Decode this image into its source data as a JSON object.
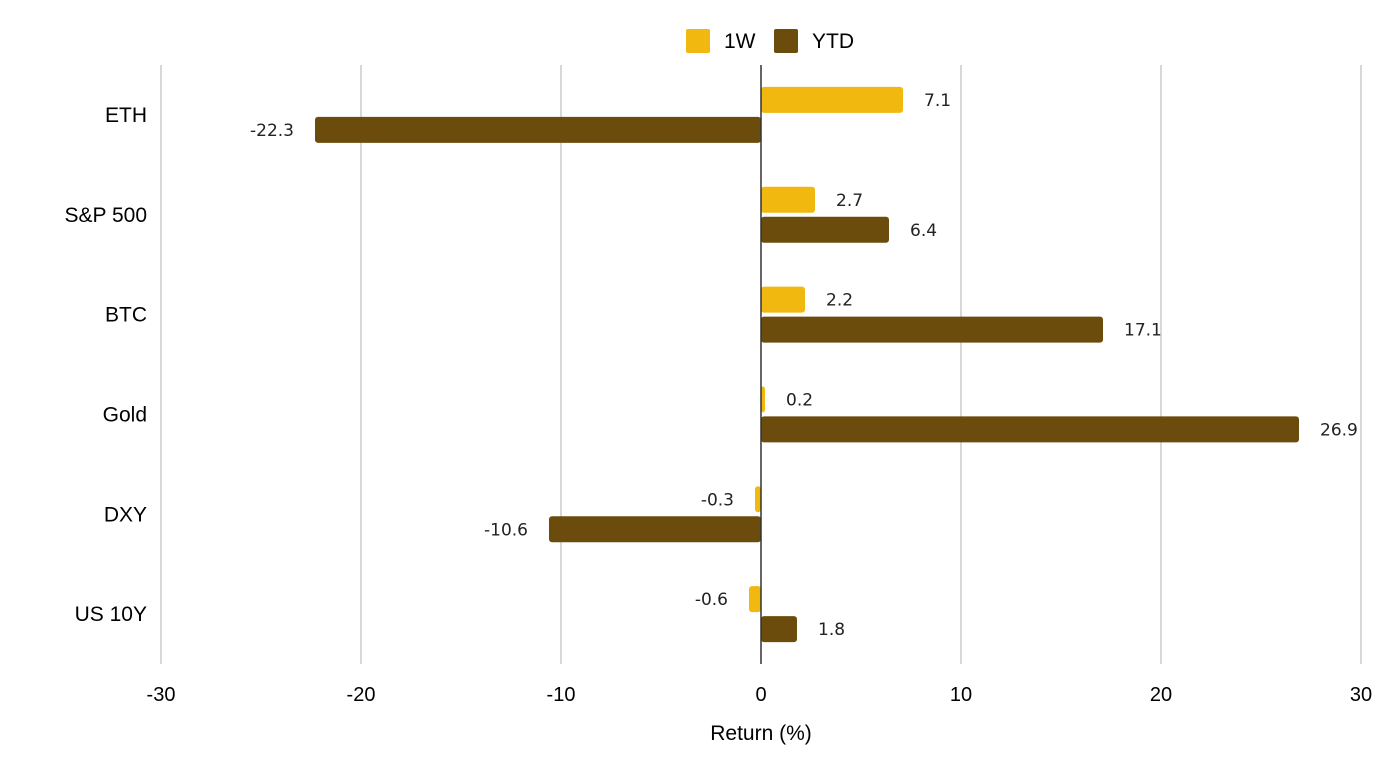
{
  "chart_data": {
    "type": "bar",
    "orientation": "horizontal",
    "categories": [
      "ETH",
      "S&P 500",
      "BTC",
      "Gold",
      "DXY",
      "US 10Y"
    ],
    "series": [
      {
        "name": "1W",
        "color": "#F1B80F",
        "values": [
          7.1,
          2.7,
          2.2,
          0.2,
          -0.3,
          -0.6
        ]
      },
      {
        "name": "YTD",
        "color": "#6B4C0C",
        "values": [
          -22.3,
          6.4,
          17.1,
          26.9,
          -10.6,
          1.8
        ]
      }
    ],
    "xlabel": "Return (%)",
    "ylabel": "",
    "xlim": [
      -30,
      30
    ],
    "xticks": [
      -30,
      -20,
      -10,
      0,
      10,
      20,
      30
    ],
    "grid": true,
    "legend": "top-center",
    "colors": {
      "grid": "#CCCCCC",
      "zero_line": "#333333"
    }
  }
}
